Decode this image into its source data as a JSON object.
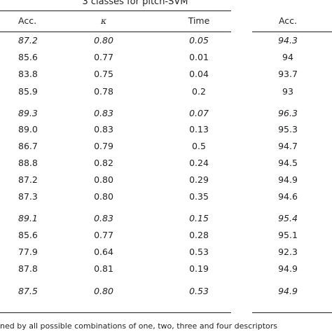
{
  "table": {
    "group_header": "3 classes for pitch-SVM",
    "columns": [
      "Acc.",
      "κ",
      "Time",
      "Acc."
    ],
    "rows": [
      {
        "acc": "87.2",
        "kappa": "0.80",
        "time": "0.05",
        "acc2": "94.3",
        "italic": true
      },
      {
        "acc": "85.6",
        "kappa": "0.77",
        "time": "0.01",
        "acc2": "94",
        "italic": false
      },
      {
        "acc": "83.8",
        "kappa": "0.75",
        "time": "0.04",
        "acc2": "93.7",
        "italic": false
      },
      {
        "acc": "85.9",
        "kappa": "0.78",
        "time": "0.2",
        "acc2": "93",
        "italic": false
      },
      {
        "acc": "89.3",
        "kappa": "0.83",
        "time": "0.07",
        "acc2": "96.3",
        "italic": true
      },
      {
        "acc": "89.0",
        "kappa": "0.83",
        "time": "0.13",
        "acc2": "95.3",
        "italic": false
      },
      {
        "acc": "86.7",
        "kappa": "0.79",
        "time": "0.5",
        "acc2": "94.7",
        "italic": false
      },
      {
        "acc": "88.8",
        "kappa": "0.82",
        "time": "0.24",
        "acc2": "94.5",
        "italic": false
      },
      {
        "acc": "87.2",
        "kappa": "0.80",
        "time": "0.29",
        "acc2": "94.9",
        "italic": false
      },
      {
        "acc": "87.3",
        "kappa": "0.80",
        "time": "0.35",
        "acc2": "94.6",
        "italic": false
      },
      {
        "acc": "89.1",
        "kappa": "0.83",
        "time": "0.15",
        "acc2": "95.4",
        "italic": true
      },
      {
        "acc": "85.6",
        "kappa": "0.77",
        "time": "0.28",
        "acc2": "95.1",
        "italic": false
      },
      {
        "acc": "77.9",
        "kappa": "0.64",
        "time": "0.53",
        "acc2": "92.3",
        "italic": false
      },
      {
        "acc": "87.8",
        "kappa": "0.81",
        "time": "0.19",
        "acc2": "94.9",
        "italic": false
      },
      {
        "acc": "87.5",
        "kappa": "0.80",
        "time": "0.53",
        "acc2": "94.9",
        "italic": true
      }
    ],
    "footnote": "ned by all possible combinations of one, two, three and four descriptors"
  }
}
